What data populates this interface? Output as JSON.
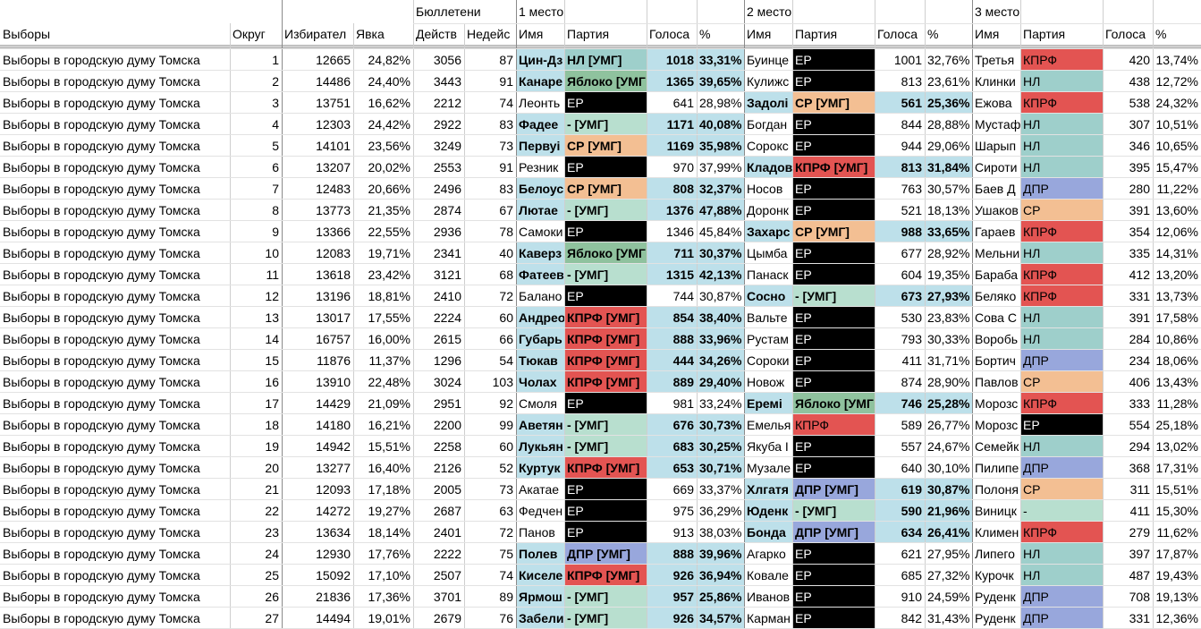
{
  "colors": {
    "winner_bg": "#bde0ea",
    "party": {
      "ЕР": "#000000",
      "КПРФ": "#e35452",
      "СР": "#f3bf93",
      "НЛ": "#9ecfcb",
      "ДПР": "#98a7dc",
      "Яблоко": "#8fc29e",
      "-": "#b8dfcf"
    }
  },
  "header": {
    "row1": {
      "ballots": "Бюллетени",
      "place1": "1 место",
      "place2": "2 место",
      "place3": "3 место"
    },
    "row2": {
      "election": "Выборы",
      "district": "Округ",
      "voters": "Избирател",
      "turnout": "Явка",
      "valid": "Действ",
      "invalid": "Недейс",
      "name": "Имя",
      "party": "Партия",
      "votes": "Голоса",
      "pct": "%"
    }
  },
  "rows": [
    {
      "election": "Выборы в городскую думу Томска",
      "district": "1",
      "voters": "12665",
      "turnout": "24,82%",
      "valid": "3056",
      "invalid": "87",
      "p1": {
        "name": "Цин-Дз",
        "party": "НЛ [УМГ]",
        "pk": "НЛ",
        "votes": "1018",
        "pct": "33,31%"
      },
      "p2": {
        "name": "Буинце",
        "party": "ЕР",
        "pk": "ЕР",
        "votes": "1001",
        "pct": "32,76%"
      },
      "p3": {
        "name": "Третья",
        "party": "КПРФ",
        "pk": "КПРФ",
        "votes": "420",
        "pct": "13,74%"
      }
    },
    {
      "election": "Выборы в городскую думу Томска",
      "district": "2",
      "voters": "14486",
      "turnout": "24,40%",
      "valid": "3443",
      "invalid": "91",
      "p1": {
        "name": "Канаре",
        "party": "Яблоко [УМГ",
        "pk": "Яблоко",
        "votes": "1365",
        "pct": "39,65%"
      },
      "p2": {
        "name": "Кулижс",
        "party": "ЕР",
        "pk": "ЕР",
        "votes": "813",
        "pct": "23,61%"
      },
      "p3": {
        "name": "Клинки",
        "party": "НЛ",
        "pk": "НЛ",
        "votes": "438",
        "pct": "12,72%"
      }
    },
    {
      "election": "Выборы в городскую думу Томска",
      "district": "3",
      "voters": "13751",
      "turnout": "16,62%",
      "valid": "2212",
      "invalid": "74",
      "p1": {
        "name": "Леонть",
        "party": "ЕР",
        "pk": "ЕР",
        "votes": "641",
        "pct": "28,98%"
      },
      "p2": {
        "name": "Задолі",
        "party": "СР [УМГ]",
        "pk": "СР",
        "votes": "561",
        "pct": "25,36%"
      },
      "p3": {
        "name": "Ежова",
        "party": "КПРФ",
        "pk": "КПРФ",
        "votes": "538",
        "pct": "24,32%"
      },
      "win": 2
    },
    {
      "election": "Выборы в городскую думу Томска",
      "district": "4",
      "voters": "12303",
      "turnout": "24,42%",
      "valid": "2922",
      "invalid": "83",
      "p1": {
        "name": "Фадее",
        "party": "- [УМГ]",
        "pk": "-",
        "votes": "1171",
        "pct": "40,08%"
      },
      "p2": {
        "name": "Богдан",
        "party": "ЕР",
        "pk": "ЕР",
        "votes": "844",
        "pct": "28,88%"
      },
      "p3": {
        "name": "Мустаф",
        "party": "НЛ",
        "pk": "НЛ",
        "votes": "307",
        "pct": "10,51%"
      }
    },
    {
      "election": "Выборы в городскую думу Томска",
      "district": "5",
      "voters": "14101",
      "turnout": "23,56%",
      "valid": "3249",
      "invalid": "73",
      "p1": {
        "name": "Первуі",
        "party": "СР [УМГ]",
        "pk": "СР",
        "votes": "1169",
        "pct": "35,98%"
      },
      "p2": {
        "name": "Сорокс",
        "party": "ЕР",
        "pk": "ЕР",
        "votes": "944",
        "pct": "29,06%"
      },
      "p3": {
        "name": "Шарып",
        "party": "НЛ",
        "pk": "НЛ",
        "votes": "346",
        "pct": "10,65%"
      }
    },
    {
      "election": "Выборы в городскую думу Томска",
      "district": "6",
      "voters": "13207",
      "turnout": "20,02%",
      "valid": "2553",
      "invalid": "91",
      "p1": {
        "name": "Резник",
        "party": "ЕР",
        "pk": "ЕР",
        "votes": "970",
        "pct": "37,99%"
      },
      "p2": {
        "name": "Кладов",
        "party": "КПРФ [УМГ]",
        "pk": "КПРФ",
        "votes": "813",
        "pct": "31,84%"
      },
      "p3": {
        "name": "Сироти",
        "party": "НЛ",
        "pk": "НЛ",
        "votes": "395",
        "pct": "15,47%"
      },
      "win": 2
    },
    {
      "election": "Выборы в городскую думу Томска",
      "district": "7",
      "voters": "12483",
      "turnout": "20,66%",
      "valid": "2496",
      "invalid": "83",
      "p1": {
        "name": "Белоус",
        "party": "СР [УМГ]",
        "pk": "СР",
        "votes": "808",
        "pct": "32,37%"
      },
      "p2": {
        "name": "Носов",
        "party": "ЕР",
        "pk": "ЕР",
        "votes": "763",
        "pct": "30,57%"
      },
      "p3": {
        "name": "Баев Д",
        "party": "ДПР",
        "pk": "ДПР",
        "votes": "280",
        "pct": "11,22%"
      }
    },
    {
      "election": "Выборы в городскую думу Томска",
      "district": "8",
      "voters": "13773",
      "turnout": "21,35%",
      "valid": "2874",
      "invalid": "67",
      "p1": {
        "name": "Лютае",
        "party": "- [УМГ]",
        "pk": "-",
        "votes": "1376",
        "pct": "47,88%"
      },
      "p2": {
        "name": "Доронк",
        "party": "ЕР",
        "pk": "ЕР",
        "votes": "521",
        "pct": "18,13%"
      },
      "p3": {
        "name": "Ушаков",
        "party": "СР",
        "pk": "СР",
        "votes": "391",
        "pct": "13,60%"
      }
    },
    {
      "election": "Выборы в городскую думу Томска",
      "district": "9",
      "voters": "13366",
      "turnout": "22,55%",
      "valid": "2936",
      "invalid": "78",
      "p1": {
        "name": "Самоки",
        "party": "ЕР",
        "pk": "ЕР",
        "votes": "1346",
        "pct": "45,84%"
      },
      "p2": {
        "name": "Захарс",
        "party": "СР [УМГ]",
        "pk": "СР",
        "votes": "988",
        "pct": "33,65%"
      },
      "p3": {
        "name": "Гараев",
        "party": "КПРФ",
        "pk": "КПРФ",
        "votes": "354",
        "pct": "12,06%"
      },
      "win": 2
    },
    {
      "election": "Выборы в городскую думу Томска",
      "district": "10",
      "voters": "12083",
      "turnout": "19,71%",
      "valid": "2341",
      "invalid": "40",
      "p1": {
        "name": "Каверз",
        "party": "Яблоко [УМГ",
        "pk": "Яблоко",
        "votes": "711",
        "pct": "30,37%"
      },
      "p2": {
        "name": "Цымба",
        "party": "ЕР",
        "pk": "ЕР",
        "votes": "677",
        "pct": "28,92%"
      },
      "p3": {
        "name": "Мельни",
        "party": "НЛ",
        "pk": "НЛ",
        "votes": "335",
        "pct": "14,31%"
      }
    },
    {
      "election": "Выборы в городскую думу Томска",
      "district": "11",
      "voters": "13618",
      "turnout": "23,42%",
      "valid": "3121",
      "invalid": "68",
      "p1": {
        "name": "Фатеев",
        "party": "- [УМГ]",
        "pk": "-",
        "votes": "1315",
        "pct": "42,13%"
      },
      "p2": {
        "name": "Панаск",
        "party": "ЕР",
        "pk": "ЕР",
        "votes": "604",
        "pct": "19,35%"
      },
      "p3": {
        "name": "Бараба",
        "party": "КПРФ",
        "pk": "КПРФ",
        "votes": "412",
        "pct": "13,20%"
      }
    },
    {
      "election": "Выборы в городскую думу Томска",
      "district": "12",
      "voters": "13196",
      "turnout": "18,81%",
      "valid": "2410",
      "invalid": "72",
      "p1": {
        "name": "Балано",
        "party": "ЕР",
        "pk": "ЕР",
        "votes": "744",
        "pct": "30,87%"
      },
      "p2": {
        "name": "Сосно",
        "party": "- [УМГ]",
        "pk": "-",
        "votes": "673",
        "pct": "27,93%"
      },
      "p3": {
        "name": "Беляко",
        "party": "КПРФ",
        "pk": "КПРФ",
        "votes": "331",
        "pct": "13,73%"
      },
      "win": 2
    },
    {
      "election": "Выборы в городскую думу Томска",
      "district": "13",
      "voters": "13017",
      "turnout": "17,55%",
      "valid": "2224",
      "invalid": "60",
      "p1": {
        "name": "Андрео",
        "party": "КПРФ [УМГ]",
        "pk": "КПРФ",
        "votes": "854",
        "pct": "38,40%"
      },
      "p2": {
        "name": "Вальте",
        "party": "ЕР",
        "pk": "ЕР",
        "votes": "530",
        "pct": "23,83%"
      },
      "p3": {
        "name": "Сова С",
        "party": "НЛ",
        "pk": "НЛ",
        "votes": "391",
        "pct": "17,58%"
      }
    },
    {
      "election": "Выборы в городскую думу Томска",
      "district": "14",
      "voters": "16757",
      "turnout": "16,00%",
      "valid": "2615",
      "invalid": "66",
      "p1": {
        "name": "Губарь",
        "party": "КПРФ [УМГ]",
        "pk": "КПРФ",
        "votes": "888",
        "pct": "33,96%"
      },
      "p2": {
        "name": "Рустам",
        "party": "ЕР",
        "pk": "ЕР",
        "votes": "793",
        "pct": "30,33%"
      },
      "p3": {
        "name": "Воробь",
        "party": "НЛ",
        "pk": "НЛ",
        "votes": "284",
        "pct": "10,86%"
      }
    },
    {
      "election": "Выборы в городскую думу Томска",
      "district": "15",
      "voters": "11876",
      "turnout": "11,37%",
      "valid": "1296",
      "invalid": "54",
      "p1": {
        "name": "Тюкав",
        "party": "КПРФ [УМГ]",
        "pk": "КПРФ",
        "votes": "444",
        "pct": "34,26%"
      },
      "p2": {
        "name": "Сороки",
        "party": "ЕР",
        "pk": "ЕР",
        "votes": "411",
        "pct": "31,71%"
      },
      "p3": {
        "name": "Бортич",
        "party": "ДПР",
        "pk": "ДПР",
        "votes": "234",
        "pct": "18,06%"
      }
    },
    {
      "election": "Выборы в городскую думу Томска",
      "district": "16",
      "voters": "13910",
      "turnout": "22,48%",
      "valid": "3024",
      "invalid": "103",
      "p1": {
        "name": "Чолах",
        "party": "КПРФ [УМГ]",
        "pk": "КПРФ",
        "votes": "889",
        "pct": "29,40%"
      },
      "p2": {
        "name": "Новож",
        "party": "ЕР",
        "pk": "ЕР",
        "votes": "874",
        "pct": "28,90%"
      },
      "p3": {
        "name": "Павлов",
        "party": "СР",
        "pk": "СР",
        "votes": "406",
        "pct": "13,43%"
      }
    },
    {
      "election": "Выборы в городскую думу Томска",
      "district": "17",
      "voters": "14429",
      "turnout": "21,09%",
      "valid": "2951",
      "invalid": "92",
      "p1": {
        "name": "Смоля",
        "party": "ЕР",
        "pk": "ЕР",
        "votes": "981",
        "pct": "33,24%"
      },
      "p2": {
        "name": "Еремі",
        "party": "Яблоко [УМГ",
        "pk": "Яблоко",
        "votes": "746",
        "pct": "25,28%"
      },
      "p3": {
        "name": "Морозс",
        "party": "КПРФ",
        "pk": "КПРФ",
        "votes": "333",
        "pct": "11,28%"
      },
      "win": 2
    },
    {
      "election": "Выборы в городскую думу Томска",
      "district": "18",
      "voters": "14180",
      "turnout": "16,21%",
      "valid": "2200",
      "invalid": "99",
      "p1": {
        "name": "Аветян",
        "party": "- [УМГ]",
        "pk": "-",
        "votes": "676",
        "pct": "30,73%"
      },
      "p2": {
        "name": "Емелья",
        "party": "КПРФ",
        "pk": "КПРФ",
        "votes": "589",
        "pct": "26,77%"
      },
      "p3": {
        "name": "Морозс",
        "party": "ЕР",
        "pk": "ЕР",
        "votes": "554",
        "pct": "25,18%"
      }
    },
    {
      "election": "Выборы в городскую думу Томска",
      "district": "19",
      "voters": "14942",
      "turnout": "15,51%",
      "valid": "2258",
      "invalid": "60",
      "p1": {
        "name": "Лукьян",
        "party": "- [УМГ]",
        "pk": "-",
        "votes": "683",
        "pct": "30,25%"
      },
      "p2": {
        "name": "Якуба І",
        "party": "ЕР",
        "pk": "ЕР",
        "votes": "557",
        "pct": "24,67%"
      },
      "p3": {
        "name": "Семейк",
        "party": "НЛ",
        "pk": "НЛ",
        "votes": "294",
        "pct": "13,02%"
      }
    },
    {
      "election": "Выборы в городскую думу Томска",
      "district": "20",
      "voters": "13277",
      "turnout": "16,40%",
      "valid": "2126",
      "invalid": "52",
      "p1": {
        "name": "Куртук",
        "party": "КПРФ [УМГ]",
        "pk": "КПРФ",
        "votes": "653",
        "pct": "30,71%"
      },
      "p2": {
        "name": "Музале",
        "party": "ЕР",
        "pk": "ЕР",
        "votes": "640",
        "pct": "30,10%"
      },
      "p3": {
        "name": "Пилипе",
        "party": "ДПР",
        "pk": "ДПР",
        "votes": "368",
        "pct": "17,31%"
      }
    },
    {
      "election": "Выборы в городскую думу Томска",
      "district": "21",
      "voters": "12093",
      "turnout": "17,18%",
      "valid": "2005",
      "invalid": "73",
      "p1": {
        "name": "Акатае",
        "party": "ЕР",
        "pk": "ЕР",
        "votes": "669",
        "pct": "33,37%"
      },
      "p2": {
        "name": "Хлгатя",
        "party": "ДПР [УМГ]",
        "pk": "ДПР",
        "votes": "619",
        "pct": "30,87%"
      },
      "p3": {
        "name": "Полоня",
        "party": "СР",
        "pk": "СР",
        "votes": "311",
        "pct": "15,51%"
      },
      "win": 2
    },
    {
      "election": "Выборы в городскую думу Томска",
      "district": "22",
      "voters": "14272",
      "turnout": "19,27%",
      "valid": "2687",
      "invalid": "63",
      "p1": {
        "name": "Федчен",
        "party": "ЕР",
        "pk": "ЕР",
        "votes": "975",
        "pct": "36,29%"
      },
      "p2": {
        "name": "Юденк",
        "party": "- [УМГ]",
        "pk": "-",
        "votes": "590",
        "pct": "21,96%"
      },
      "p3": {
        "name": "Виницк",
        "party": "-",
        "pk": "-",
        "votes": "411",
        "pct": "15,30%"
      },
      "win": 2
    },
    {
      "election": "Выборы в городскую думу Томска",
      "district": "23",
      "voters": "13634",
      "turnout": "18,14%",
      "valid": "2401",
      "invalid": "72",
      "p1": {
        "name": "Панов",
        "party": "ЕР",
        "pk": "ЕР",
        "votes": "913",
        "pct": "38,03%"
      },
      "p2": {
        "name": "Бонда",
        "party": "ДПР [УМГ]",
        "pk": "ДПР",
        "votes": "634",
        "pct": "26,41%"
      },
      "p3": {
        "name": "Климен",
        "party": "КПРФ",
        "pk": "КПРФ",
        "votes": "279",
        "pct": "11,62%"
      },
      "win": 2
    },
    {
      "election": "Выборы в городскую думу Томска",
      "district": "24",
      "voters": "12930",
      "turnout": "17,76%",
      "valid": "2222",
      "invalid": "75",
      "p1": {
        "name": "Полев",
        "party": "ДПР [УМГ]",
        "pk": "ДПР",
        "votes": "888",
        "pct": "39,96%"
      },
      "p2": {
        "name": "Агарко",
        "party": "ЕР",
        "pk": "ЕР",
        "votes": "621",
        "pct": "27,95%"
      },
      "p3": {
        "name": "Липего",
        "party": "НЛ",
        "pk": "НЛ",
        "votes": "397",
        "pct": "17,87%"
      }
    },
    {
      "election": "Выборы в городскую думу Томска",
      "district": "25",
      "voters": "15092",
      "turnout": "17,10%",
      "valid": "2507",
      "invalid": "74",
      "p1": {
        "name": "Киселе",
        "party": "КПРФ [УМГ]",
        "pk": "КПРФ",
        "votes": "926",
        "pct": "36,94%"
      },
      "p2": {
        "name": "Ковале",
        "party": "ЕР",
        "pk": "ЕР",
        "votes": "685",
        "pct": "27,32%"
      },
      "p3": {
        "name": "Курочк",
        "party": "НЛ",
        "pk": "НЛ",
        "votes": "487",
        "pct": "19,43%"
      }
    },
    {
      "election": "Выборы в городскую думу Томска",
      "district": "26",
      "voters": "21836",
      "turnout": "17,36%",
      "valid": "3701",
      "invalid": "89",
      "p1": {
        "name": "Ярмош",
        "party": "- [УМГ]",
        "pk": "-",
        "votes": "957",
        "pct": "25,86%"
      },
      "p2": {
        "name": "Иванов",
        "party": "ЕР",
        "pk": "ЕР",
        "votes": "910",
        "pct": "24,59%"
      },
      "p3": {
        "name": "Руденк",
        "party": "ДПР",
        "pk": "ДПР",
        "votes": "708",
        "pct": "19,13%"
      }
    },
    {
      "election": "Выборы в городскую думу Томска",
      "district": "27",
      "voters": "14494",
      "turnout": "19,01%",
      "valid": "2679",
      "invalid": "76",
      "p1": {
        "name": "Забели",
        "party": "- [УМГ]",
        "pk": "-",
        "votes": "926",
        "pct": "34,57%"
      },
      "p2": {
        "name": "Карман",
        "party": "ЕР",
        "pk": "ЕР",
        "votes": "842",
        "pct": "31,43%"
      },
      "p3": {
        "name": "Руденк",
        "party": "ДПР",
        "pk": "ДПР",
        "votes": "331",
        "pct": "12,36%"
      }
    }
  ]
}
